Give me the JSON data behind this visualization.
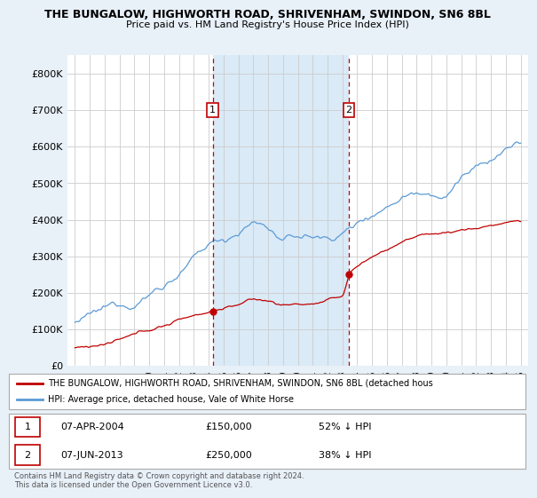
{
  "title": "THE BUNGALOW, HIGHWORTH ROAD, SHRIVENHAM, SWINDON, SN6 8BL",
  "subtitle": "Price paid vs. HM Land Registry's House Price Index (HPI)",
  "background_color": "#e8f0f8",
  "plot_bg_color": "#ffffff",
  "shade_color": "#daeaf7",
  "ylim": [
    0,
    850000
  ],
  "yticks": [
    0,
    100000,
    200000,
    300000,
    400000,
    500000,
    600000,
    700000,
    800000
  ],
  "ytick_labels": [
    "£0",
    "£100K",
    "£200K",
    "£300K",
    "£400K",
    "£500K",
    "£600K",
    "£700K",
    "£800K"
  ],
  "xlim_start": 1994.5,
  "xlim_end": 2025.5,
  "sale1_x": 2004.27,
  "sale1_y": 150000,
  "sale2_x": 2013.44,
  "sale2_y": 250000,
  "sale1_label": "1",
  "sale2_label": "2",
  "sale1_date": "07-APR-2004",
  "sale1_price": "£150,000",
  "sale1_hpi": "52% ↓ HPI",
  "sale2_date": "07-JUN-2013",
  "sale2_price": "£250,000",
  "sale2_hpi": "38% ↓ HPI",
  "hpi_color": "#5b9bd5",
  "price_color": "#c00000",
  "dashed_line_color": "#c00000",
  "legend_label_price": "THE BUNGALOW, HIGHWORTH ROAD, SHRIVENHAM, SWINDON, SN6 8BL (detached hous",
  "legend_label_hpi": "HPI: Average price, detached house, Vale of White Horse",
  "footnote": "Contains HM Land Registry data © Crown copyright and database right 2024.\nThis data is licensed under the Open Government Licence v3.0."
}
